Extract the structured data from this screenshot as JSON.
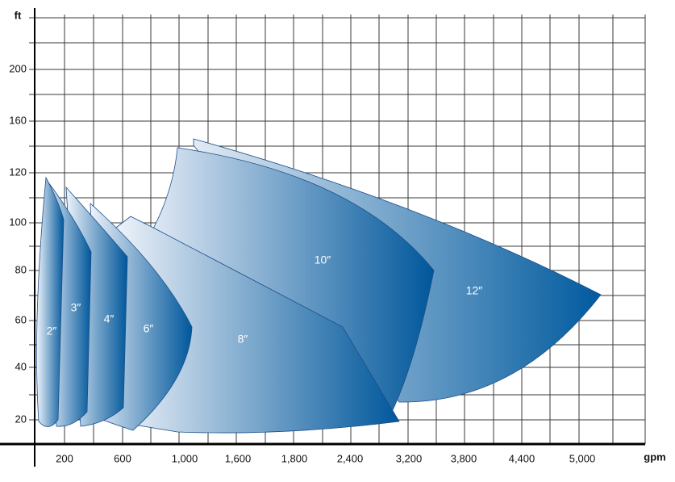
{
  "axes": {
    "y_unit": "ft",
    "x_unit": "gpm",
    "y_labels": [
      20,
      40,
      60,
      80,
      100,
      120,
      160,
      200
    ],
    "x_labels": [
      "200",
      "600",
      "1,000",
      "1,600",
      "1,800",
      "2,400",
      "3,200",
      "3,800",
      "4,400",
      "5,000"
    ]
  },
  "regions": [
    {
      "label": "12″"
    },
    {
      "label": "10″"
    },
    {
      "label": "8″"
    },
    {
      "label": "6″"
    },
    {
      "label": "4″"
    },
    {
      "label": "3″"
    },
    {
      "label": "2″"
    }
  ]
}
